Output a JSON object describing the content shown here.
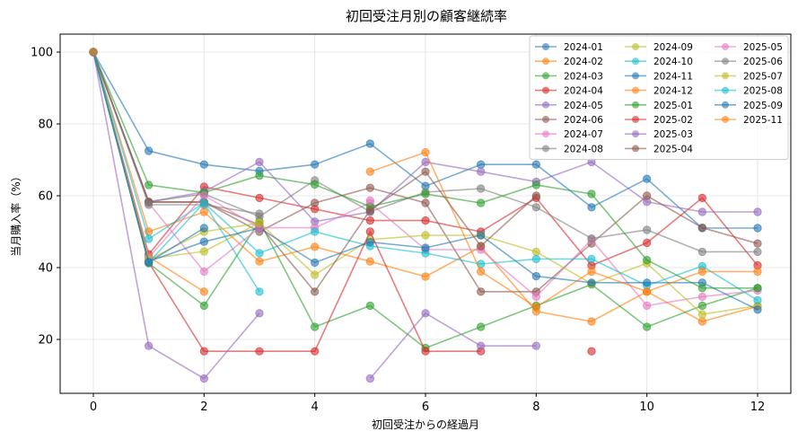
{
  "chart_data": {
    "type": "line",
    "title": "初回受注月別の顧客継続率",
    "xlabel": "初回受注からの経過月",
    "ylabel": "当月購入率（%）",
    "xlim": [
      -0.6,
      12.6
    ],
    "ylim": [
      5,
      105
    ],
    "xticks": [
      0,
      2,
      4,
      6,
      8,
      10,
      12
    ],
    "yticks": [
      20,
      40,
      60,
      80,
      100
    ],
    "grid": true,
    "legend": {
      "placement": "top-right",
      "columns": 3
    },
    "colors": [
      "#1f77b4",
      "#ff7f0e",
      "#2ca02c",
      "#d62728",
      "#9467bd",
      "#8c564b",
      "#e377c2",
      "#7f7f7f",
      "#bcbd22",
      "#17becf"
    ],
    "series": [
      {
        "name": "2024-01",
        "values": [
          100,
          72.5,
          68.7,
          66.9,
          68.7,
          74.5,
          62.7,
          68.7,
          68.7,
          56.8,
          64.7,
          51.0,
          51.0
        ]
      },
      {
        "name": "2024-02",
        "values": [
          100,
          50,
          55.5,
          41.7,
          45.8,
          41.7,
          37.5,
          45.8,
          27.8,
          25,
          33.3,
          25,
          29.2
        ]
      },
      {
        "name": "2024-03",
        "values": [
          100,
          41.2,
          29.4,
          52.9,
          23.5,
          29.4,
          17.6,
          23.5,
          29.4,
          35.3,
          23.5,
          29.4,
          34.3
        ]
      },
      {
        "name": "2024-04",
        "values": [
          100,
          43.7,
          62.5,
          59.4,
          56.3,
          53.1,
          53.1,
          50.0,
          59.4,
          40.6,
          46.9,
          59.4,
          40.6
        ]
      },
      {
        "name": "2024-05",
        "values": [
          100,
          58.3,
          61.1,
          69.4,
          52.8,
          55.5,
          69.4,
          66.7,
          63.9,
          69.4,
          58.3,
          55.5,
          55.5
        ]
      },
      {
        "name": "2024-06",
        "values": [
          100,
          58.3,
          58.3,
          50.0,
          58.0,
          62.2,
          58.0,
          33.3,
          33.3,
          46.7,
          60.0,
          51.1,
          46.7
        ]
      },
      {
        "name": "2024-07",
        "values": [
          100,
          58.0,
          38.9,
          51.1,
          51.1,
          58.0,
          45.0,
          45.0,
          31.9,
          47.8,
          29.4,
          31.9,
          33.6
        ]
      },
      {
        "name": "2024-08",
        "values": [
          100,
          58.3,
          60.5,
          54.2,
          64.3,
          55.6,
          61.0,
          62.0,
          56.8,
          48.1,
          50.5,
          44.4,
          44.4
        ]
      },
      {
        "name": "2024-09",
        "values": [
          100,
          42.5,
          44.5,
          52.5,
          38.0,
          47.8,
          49.0,
          49.0,
          44.4,
          35.5,
          41.2,
          27.0,
          29.4
        ]
      },
      {
        "name": "2024-10",
        "values": [
          100,
          48.0,
          58.0,
          44.0,
          50.0,
          46.0,
          44.0,
          41.0,
          42.4,
          42.4,
          35.0,
          40.4,
          30.9
        ]
      },
      {
        "name": "2024-11",
        "values": [
          100,
          41.7,
          47.2,
          51.0,
          41.4,
          47.1,
          45.5,
          49.0,
          37.6,
          35.8,
          35.8,
          35.8,
          28.3
        ]
      },
      {
        "name": "2024-12",
        "values": [
          100,
          43.0,
          33.3,
          null,
          null,
          66.7,
          72.1,
          38.9,
          29.0,
          38.9,
          33.3,
          38.9,
          38.9
        ]
      },
      {
        "name": "2025-01",
        "values": [
          100,
          63.0,
          60.9,
          65.6,
          63.1,
          57.0,
          60.5,
          58.0,
          63.0,
          60.5,
          42.1,
          34.3,
          34.3
        ]
      },
      {
        "name": "2025-02",
        "values": [
          100,
          41.5,
          16.7,
          16.7,
          16.7,
          50.0,
          16.7,
          16.7,
          null,
          16.7,
          null,
          null,
          null
        ]
      },
      {
        "name": "2025-03",
        "values": [
          100,
          18.2,
          9.1,
          27.3,
          null,
          9.1,
          27.3,
          18.2,
          18.2,
          null,
          null,
          null,
          null
        ]
      },
      {
        "name": "2025-04",
        "values": [
          100,
          58.2,
          58.2,
          51.9,
          33.3,
          56.0,
          66.7,
          46.0,
          60.0,
          null,
          null,
          null,
          null
        ]
      },
      {
        "name": "2025-05",
        "values": [
          100,
          42.8,
          60.1,
          51.1,
          null,
          58.7,
          null,
          null,
          null,
          null,
          null,
          null,
          null
        ]
      },
      {
        "name": "2025-06",
        "values": [
          100,
          57.5,
          57.5,
          55.0,
          null,
          null,
          null,
          null,
          null,
          null,
          null,
          null,
          null
        ]
      },
      {
        "name": "2025-07",
        "values": [
          100,
          42.2,
          50.0,
          52.4,
          null,
          null,
          null,
          null,
          null,
          null,
          null,
          null,
          null
        ]
      },
      {
        "name": "2025-08",
        "values": [
          100,
          41.5,
          58.0,
          33.3,
          null,
          null,
          null,
          null,
          null,
          null,
          null,
          null,
          null
        ]
      },
      {
        "name": "2025-09",
        "values": [
          100,
          41.5,
          51.0,
          null,
          null,
          null,
          null,
          null,
          null,
          null,
          null,
          null,
          null
        ]
      },
      {
        "name": "2025-11",
        "values": [
          100,
          null,
          null,
          null,
          null,
          null,
          null,
          null,
          null,
          null,
          null,
          null,
          null
        ]
      }
    ]
  }
}
